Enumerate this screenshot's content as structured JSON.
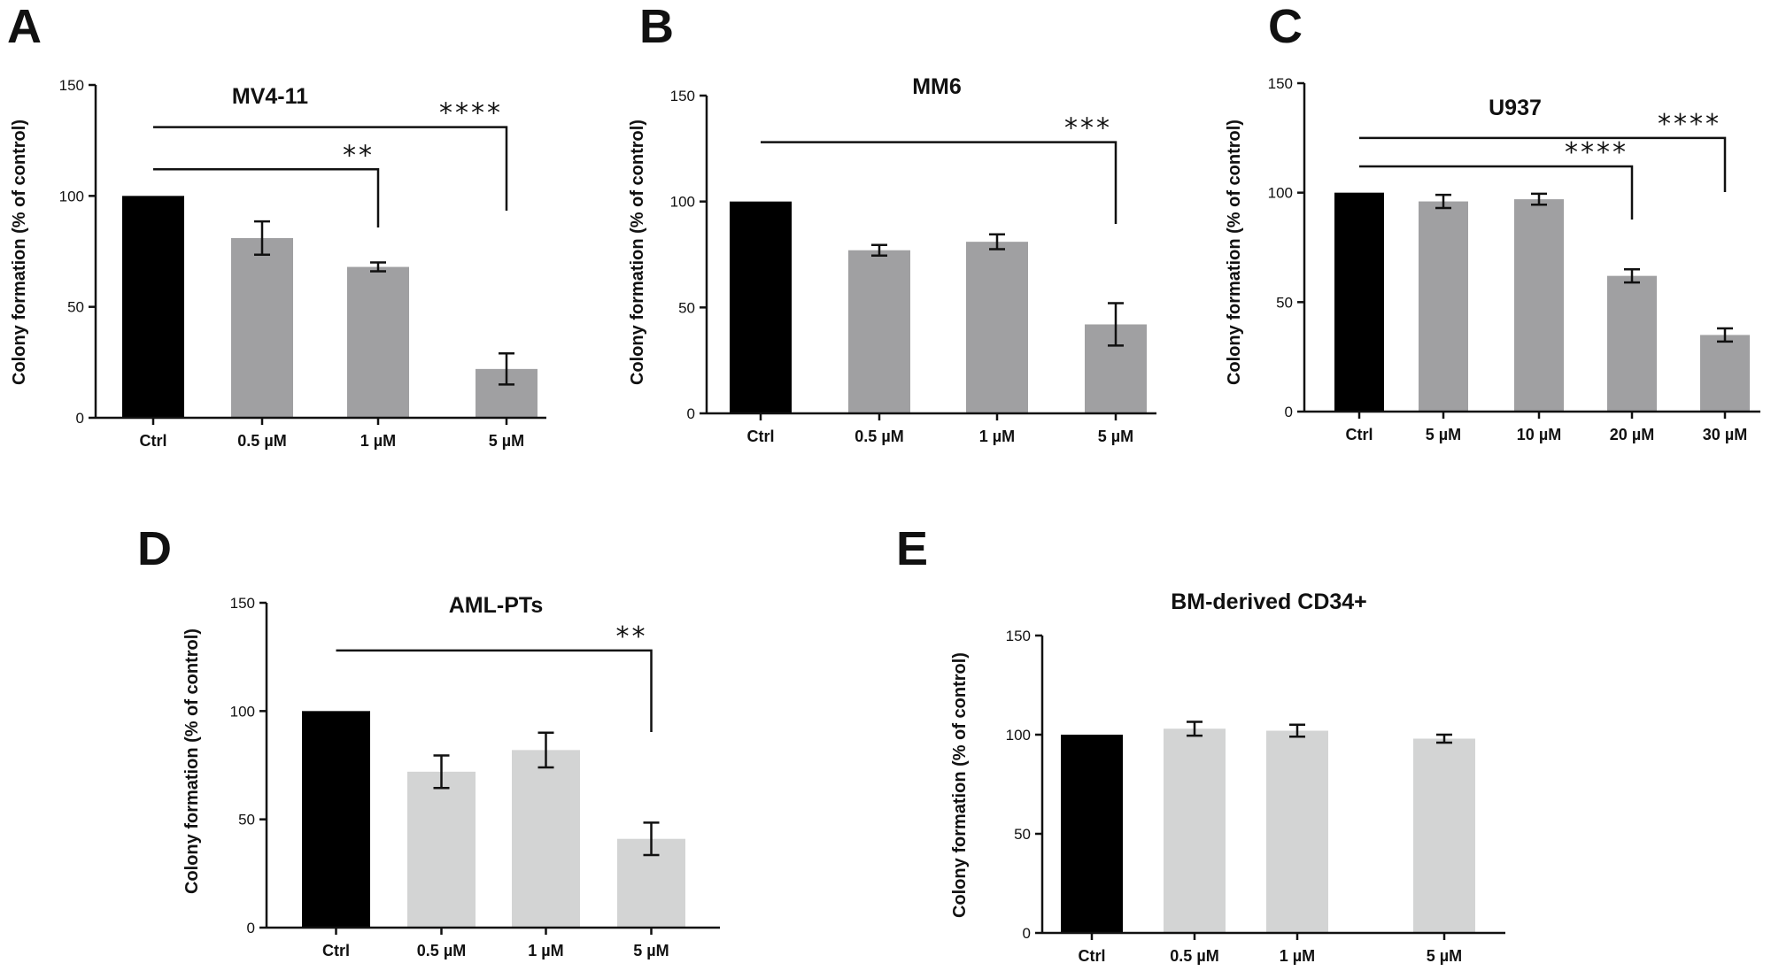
{
  "chart_data": [
    {
      "panel": "A",
      "type": "bar",
      "title": "MV4-11",
      "ylabel": "Colony formation (% of control)",
      "categories": [
        "Ctrl",
        "0.5 µM",
        "1 µM",
        "5 µM"
      ],
      "values": [
        100,
        81,
        68,
        22
      ],
      "errors": [
        0,
        7.5,
        2,
        7
      ],
      "colors": [
        "#000000",
        "#a0a0a2",
        "#a0a0a2",
        "#a0a0a2"
      ],
      "ylim": [
        0,
        150
      ],
      "yticks": [
        0,
        50,
        100,
        150
      ],
      "significance": [
        {
          "from": 0,
          "to": 2,
          "label": "**",
          "level": 112
        },
        {
          "from": 0,
          "to": 3,
          "label": "****",
          "level": 131
        }
      ]
    },
    {
      "panel": "B",
      "type": "bar",
      "title": "MM6",
      "ylabel": "Colony formation (% of control)",
      "categories": [
        "Ctrl",
        "0.5 µM",
        "1 µM",
        "5 µM"
      ],
      "values": [
        100,
        77,
        81,
        42
      ],
      "errors": [
        0,
        2.5,
        3.5,
        10
      ],
      "colors": [
        "#000000",
        "#a0a0a2",
        "#a0a0a2",
        "#a0a0a2"
      ],
      "ylim": [
        0,
        150
      ],
      "yticks": [
        0,
        50,
        100,
        150
      ],
      "significance": [
        {
          "from": 0,
          "to": 3,
          "label": "***",
          "level": 128
        }
      ]
    },
    {
      "panel": "C",
      "type": "bar",
      "title": "U937",
      "ylabel": "Colony formation (% of control)",
      "categories": [
        "Ctrl",
        "5 µM",
        "10 µM",
        "20 µM",
        "30 µM"
      ],
      "values": [
        100,
        96,
        97,
        62,
        35
      ],
      "errors": [
        0,
        3,
        2.5,
        3,
        3
      ],
      "colors": [
        "#000000",
        "#a0a0a2",
        "#a0a0a2",
        "#a0a0a2",
        "#a0a0a2"
      ],
      "ylim": [
        0,
        150
      ],
      "yticks": [
        0,
        50,
        100,
        150
      ],
      "significance": [
        {
          "from": 0,
          "to": 3,
          "label": "****",
          "level": 112
        },
        {
          "from": 0,
          "to": 4,
          "label": "****",
          "level": 125
        }
      ]
    },
    {
      "panel": "D",
      "type": "bar",
      "title": "AML-PTs",
      "ylabel": "Colony formation (% of control)",
      "categories": [
        "Ctrl",
        "0.5 µM",
        "1 µM",
        "5 µM"
      ],
      "values": [
        100,
        72,
        82,
        41
      ],
      "errors": [
        0,
        7.5,
        8,
        7.5
      ],
      "colors": [
        "#000000",
        "#d3d4d4",
        "#d3d4d4",
        "#d3d4d4"
      ],
      "ylim": [
        0,
        150
      ],
      "yticks": [
        0,
        50,
        100,
        150
      ],
      "significance": [
        {
          "from": 0,
          "to": 3,
          "label": "**",
          "level": 128
        }
      ]
    },
    {
      "panel": "E",
      "type": "bar",
      "title": "BM-derived CD34+",
      "ylabel": "Colony formation (% of control)",
      "categories": [
        "Ctrl",
        "0.5 µM",
        "1 µM",
        "5 µM"
      ],
      "values": [
        100,
        103,
        102,
        98
      ],
      "errors": [
        0,
        3.5,
        3,
        2
      ],
      "colors": [
        "#000000",
        "#d3d4d4",
        "#d3d4d4",
        "#d3d4d4"
      ],
      "ylim": [
        0,
        150
      ],
      "yticks": [
        0,
        50,
        100,
        150
      ],
      "significance": []
    }
  ]
}
